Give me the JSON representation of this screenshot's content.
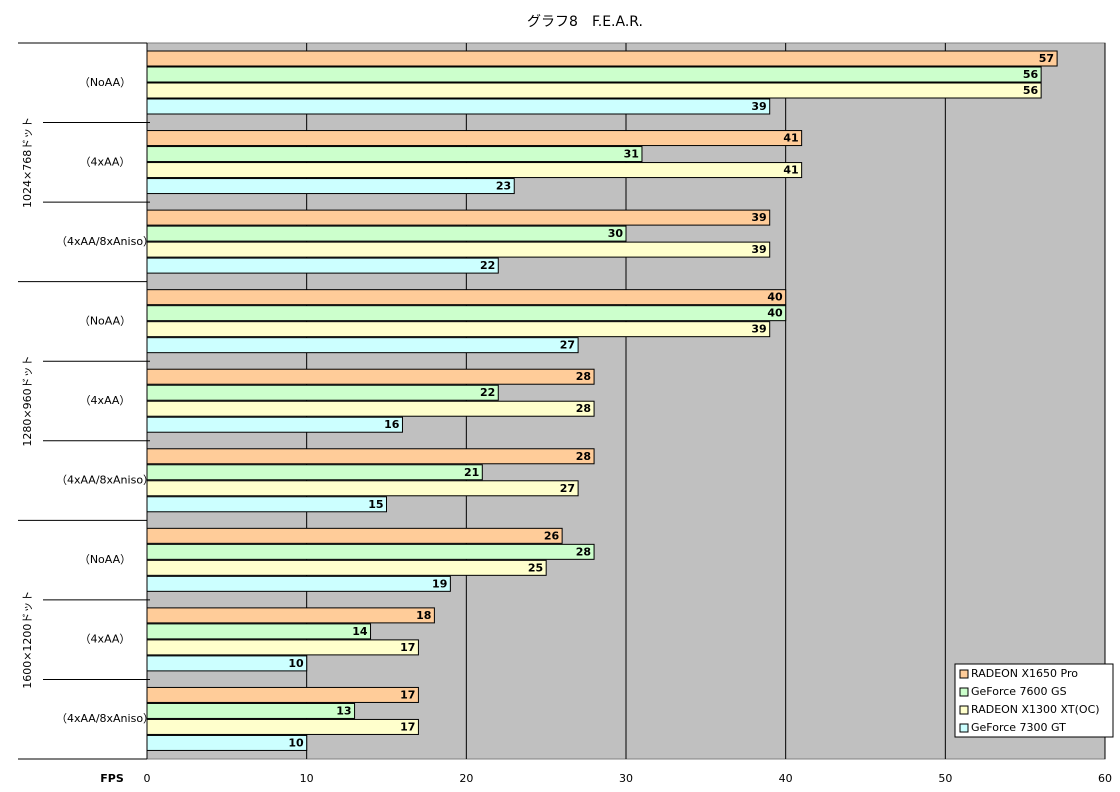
{
  "chart_data": {
    "type": "hbar",
    "title": "グラフ8　F.E.A.R.",
    "x_label": "FPS",
    "groups": [
      {
        "name": "1024×768ドット",
        "categories": [
          "（NoAA）",
          "（4xAA）",
          "（4xAA/8xAniso）"
        ]
      },
      {
        "name": "1280×960ドット",
        "categories": [
          "（NoAA）",
          "（4xAA）",
          "（4xAA/8xAniso）"
        ]
      },
      {
        "name": "1600×1200ドット",
        "categories": [
          "（NoAA）",
          "（4xAA）",
          "（4xAA/8xAniso）"
        ]
      }
    ],
    "series": [
      {
        "name": "RADEON X1650 Pro",
        "color": "#ffcc99",
        "values": [
          57,
          41,
          39,
          40,
          28,
          28,
          26,
          18,
          17
        ]
      },
      {
        "name": "GeForce 7600 GS",
        "color": "#ccffcc",
        "values": [
          56,
          31,
          30,
          40,
          22,
          21,
          28,
          14,
          13
        ]
      },
      {
        "name": "RADEON X1300 XT(OC)",
        "color": "#ffffcc",
        "values": [
          56,
          41,
          39,
          39,
          28,
          27,
          25,
          17,
          17
        ]
      },
      {
        "name": "GeForce 7300 GT",
        "color": "#ccffff",
        "values": [
          39,
          23,
          22,
          27,
          16,
          15,
          19,
          10,
          10
        ]
      }
    ],
    "xlim": [
      0,
      60
    ],
    "xticks": [
      0,
      10,
      20,
      30,
      40,
      50,
      60
    ],
    "grid": true,
    "plot_background": "#c0c0c0",
    "legend": "lower right"
  }
}
